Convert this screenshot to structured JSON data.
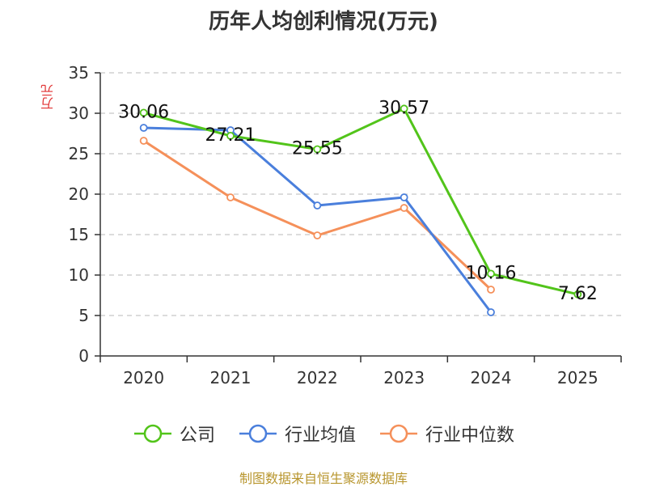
{
  "chart_data": {
    "type": "line",
    "title": "历年人均创利情况(万元)",
    "ylabel": "万元",
    "categories": [
      "2020",
      "2021",
      "2022",
      "2023",
      "2024",
      "2025"
    ],
    "ylim": [
      0,
      35
    ],
    "yticks": [
      0,
      5,
      10,
      15,
      20,
      25,
      30,
      35
    ],
    "grid": true,
    "series": [
      {
        "name": "公司",
        "color": "#52c41a",
        "values": [
          30.06,
          27.21,
          25.55,
          30.57,
          10.16,
          7.62
        ],
        "labels": [
          "30.06",
          "27.21",
          "25.55",
          "30.57",
          "10.16",
          "7.62"
        ]
      },
      {
        "name": "行业均值",
        "color": "#4a7fdc",
        "values": [
          28.2,
          27.9,
          18.6,
          19.6,
          5.4,
          null
        ]
      },
      {
        "name": "行业中位数",
        "color": "#f5905a",
        "values": [
          26.6,
          19.6,
          14.9,
          18.3,
          8.2,
          null
        ]
      }
    ]
  },
  "footer": {
    "source": "制图数据来自恒生聚源数据库"
  }
}
